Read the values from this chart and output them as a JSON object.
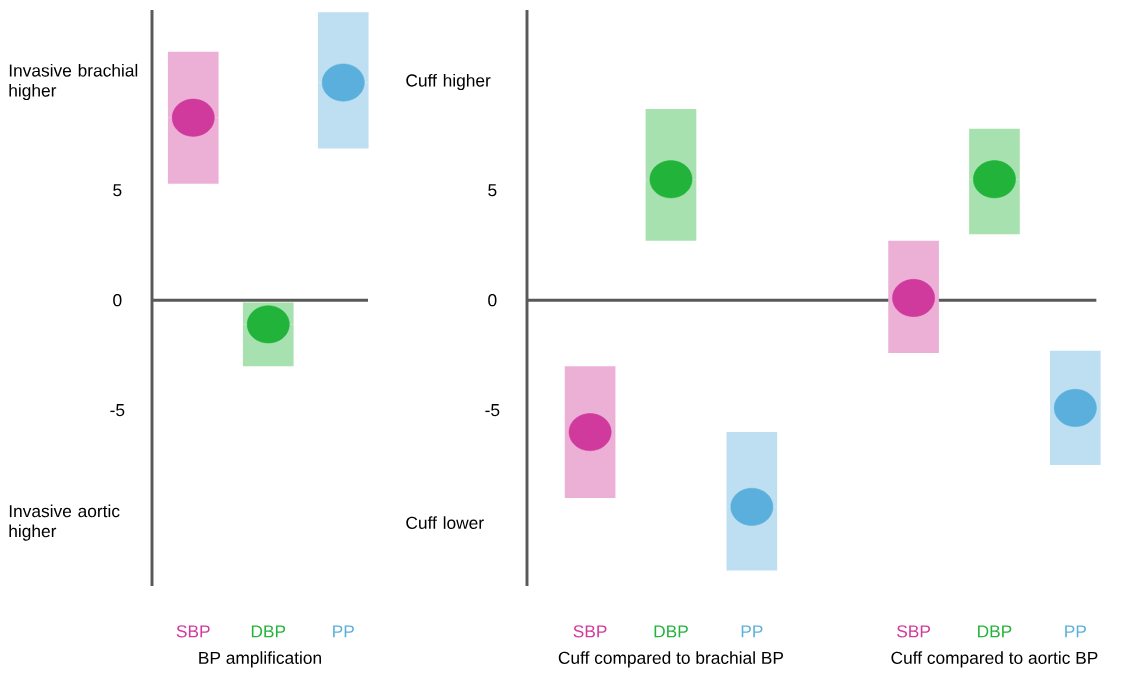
{
  "chart_data": [
    {
      "type": "scatter",
      "categories": [
        "SBP",
        "DBP",
        "PP"
      ],
      "values": [
        8.3,
        -1.1,
        9.9
      ],
      "errors": [
        [
          5.3,
          11.3
        ],
        [
          -3.0,
          -0.1
        ],
        [
          6.9,
          13.1
        ]
      ],
      "colors": [
        "#d03a9c",
        "#22b33a",
        "#5bafdc"
      ],
      "ylim": [
        -13,
        13.2
      ],
      "yticks": [
        -5,
        0,
        5
      ],
      "xlabel": "BP amplification",
      "grid": false,
      "ref_lines": [
        {
          "axis": "y",
          "value": 0
        }
      ],
      "annotations": [
        "Invasive brachial higher",
        "Invasive aortic higher"
      ]
    },
    {
      "type": "scatter",
      "categories": [
        "SBP",
        "DBP",
        "PP",
        null,
        "SBP",
        "DBP",
        "PP"
      ],
      "values": [
        -6.0,
        5.5,
        -9.4,
        null,
        0.1,
        5.5,
        -4.9
      ],
      "errors": [
        [
          -9.0,
          -3.0
        ],
        [
          2.7,
          8.7
        ],
        [
          -12.3,
          -6.0
        ],
        null,
        [
          -2.4,
          2.7
        ],
        [
          3.0,
          7.8
        ],
        [
          -7.5,
          -2.3
        ]
      ],
      "colors": [
        "#d03a9c",
        "#22b33a",
        "#5bafdc",
        null,
        "#d03a9c",
        "#22b33a",
        "#5bafdc"
      ],
      "ylim": [
        -13,
        13.2
      ],
      "yticks": [
        -5,
        0,
        5
      ],
      "grid": false,
      "ref_lines": [
        {
          "axis": "y",
          "value": 0
        }
      ],
      "annotations": [
        "Cuff higher",
        "Cuff lower",
        "Cuff compared to brachial BP",
        "Cuff compared to aortic BP"
      ]
    }
  ]
}
